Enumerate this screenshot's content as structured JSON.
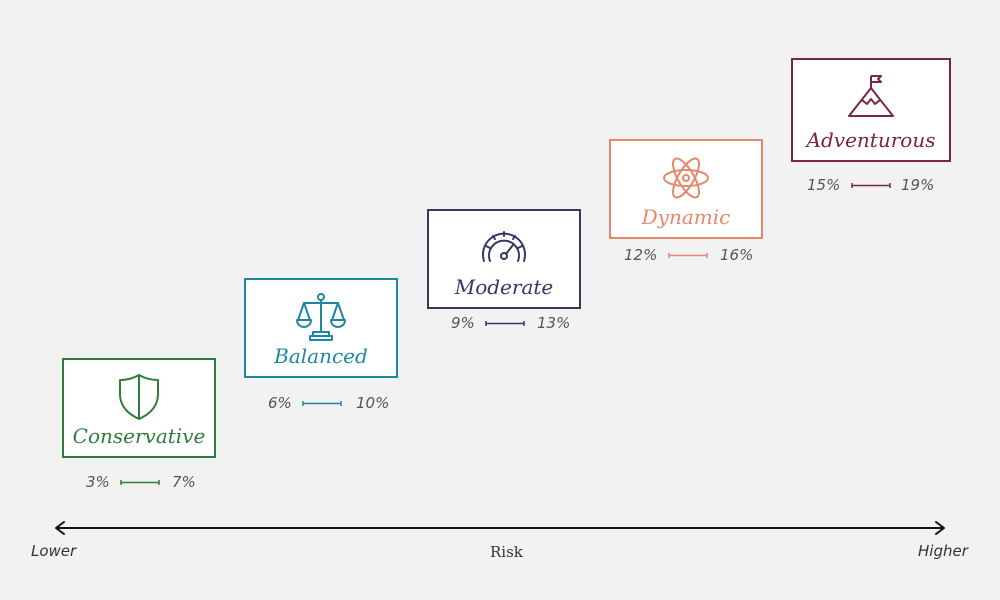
{
  "profiles": [
    {
      "name": "Conservative",
      "icon": "shield-icon",
      "color": "#2e7d3c",
      "low": "3%",
      "high": "7%"
    },
    {
      "name": "Balanced",
      "icon": "scales-icon",
      "color": "#1f86a4",
      "low": "6%",
      "high": "10%"
    },
    {
      "name": "Moderate",
      "icon": "speedometer-icon",
      "color": "#33395f",
      "low": "9%",
      "high": "13%"
    },
    {
      "name": "Dynamic",
      "icon": "atom-icon",
      "color": "#e8886a",
      "low": "12%",
      "high": "16%"
    },
    {
      "name": "Adventurous",
      "icon": "mountain-flag-icon",
      "color": "#7d2446",
      "low": "15%",
      "high": "19%"
    }
  ],
  "axis": {
    "left": "Lower",
    "center": "Risk",
    "right": "Higher"
  }
}
